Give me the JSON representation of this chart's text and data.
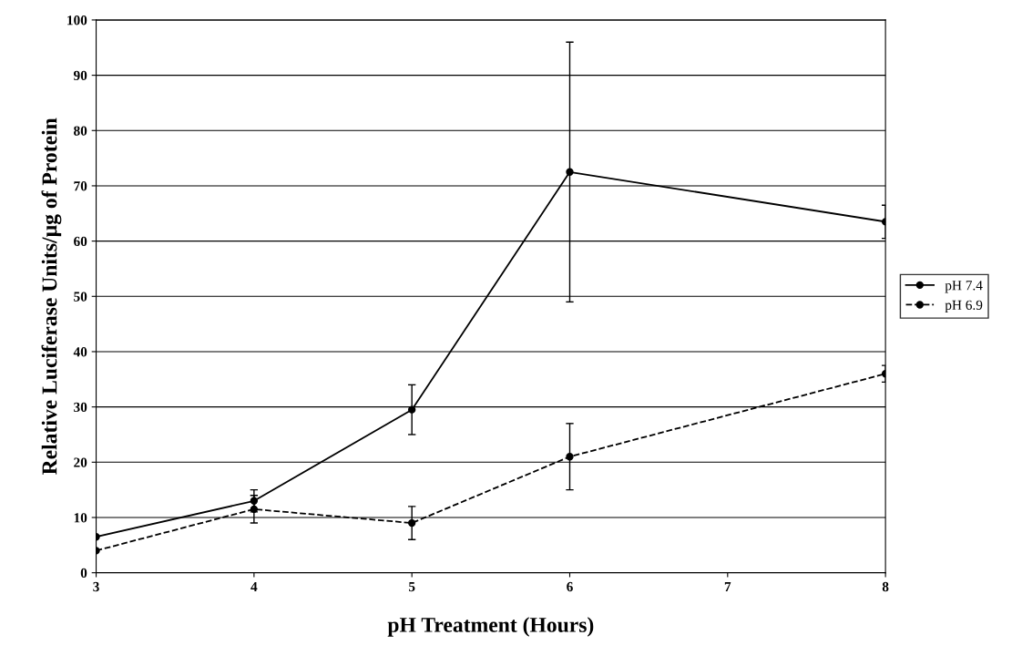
{
  "chart_data": {
    "type": "line",
    "xlabel": "pH Treatment (Hours)",
    "ylabel": "Relative Luciferase Units/µg of Protein",
    "x": [
      3,
      4,
      5,
      6,
      8
    ],
    "xlim": [
      3,
      8
    ],
    "xticks": [
      3,
      4,
      5,
      6,
      7,
      8
    ],
    "ylim": [
      0,
      100
    ],
    "yticks": [
      0,
      10,
      20,
      30,
      40,
      50,
      60,
      70,
      80,
      90,
      100
    ],
    "grid": "y",
    "legend": "right",
    "marker": "circle",
    "series": [
      {
        "name": "pH 7.4",
        "color": "#000000",
        "line_style": "solid",
        "values": [
          6.5,
          13,
          29.5,
          72.5,
          63.5
        ],
        "errors": [
          null,
          2,
          4.5,
          23.5,
          3
        ]
      },
      {
        "name": "pH 6.9",
        "color": "#000000",
        "line_style": "dashed",
        "values": [
          4,
          11.5,
          9,
          21,
          36
        ],
        "errors": [
          null,
          2.5,
          3,
          6,
          1.5
        ]
      }
    ]
  }
}
